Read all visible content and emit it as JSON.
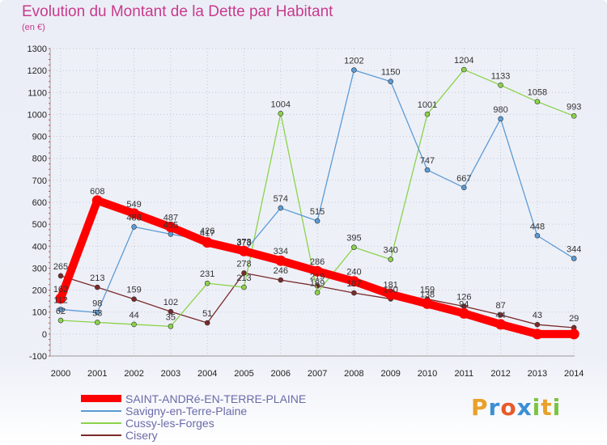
{
  "header": {
    "title": "Evolution du Montant de la Dette par Habitant",
    "subtitle": "(en €)"
  },
  "logo": {
    "letters": [
      {
        "ch": "P",
        "color": "#e8a12a"
      },
      {
        "ch": "r",
        "color": "#3a8fd6"
      },
      {
        "ch": "o",
        "color": "#e85a2a"
      },
      {
        "ch": "x",
        "color": "#3a8fd6"
      },
      {
        "ch": "i",
        "color": "#7cc440"
      },
      {
        "ch": "t",
        "color": "#e8a12a"
      },
      {
        "ch": "i",
        "color": "#7cc440"
      }
    ]
  },
  "chart_data": {
    "type": "line",
    "title": "Evolution du Montant de la Dette par Habitant",
    "ylabel": "(en €)",
    "xlabel": "",
    "x": [
      "2000",
      "2001",
      "2002",
      "2003",
      "2004",
      "2005",
      "2006",
      "2007",
      "2008",
      "2009",
      "2010",
      "2011",
      "2012",
      "2013",
      "2014"
    ],
    "ylim": [
      -100,
      1300
    ],
    "yticks": [
      -100,
      0,
      100,
      200,
      300,
      400,
      500,
      600,
      700,
      800,
      900,
      1000,
      1100,
      1200,
      1300
    ],
    "grid": true,
    "legend_position": "bottom-left",
    "series": [
      {
        "name": "SAINT-ANDRé-EN-TERRE-PLAINE",
        "color": "#ff0000",
        "values": [
          162,
          608,
          549,
          487,
          417,
          378,
          334,
          286,
          240,
          181,
          138,
          94,
          44,
          0,
          0
        ],
        "labels": [
          "162",
          "608",
          "549",
          "487",
          "417",
          "378",
          "334",
          "286",
          "240",
          "181",
          "138",
          "94",
          "44",
          "",
          ""
        ]
      },
      {
        "name": "Savigny-en-Terre-Plaine",
        "color": "#5b9bd5",
        "values": [
          112,
          98,
          488,
          455,
          426,
          373,
          574,
          515,
          1202,
          1150,
          747,
          667,
          980,
          448,
          344
        ],
        "labels": [
          "112",
          "98",
          "488",
          "455",
          "426",
          "373",
          "574",
          "515",
          "1202",
          "1150",
          "747",
          "667",
          "980",
          "448",
          "344"
        ]
      },
      {
        "name": "Cussy-les-Forges",
        "color": "#8bd34a",
        "values": [
          62,
          53,
          44,
          35,
          231,
          213,
          1004,
          189,
          395,
          340,
          1001,
          1204,
          1133,
          1058,
          993
        ],
        "labels": [
          "62",
          "53",
          "44",
          "35",
          "231",
          "213",
          "1004",
          "189",
          "395",
          "340",
          "1001",
          "1204",
          "1133",
          "1058",
          "993"
        ]
      },
      {
        "name": "Cisery",
        "color": "#7a2a2a",
        "values": [
          265,
          213,
          159,
          102,
          51,
          278,
          246,
          219,
          187,
          160,
          159,
          126,
          87,
          43,
          29
        ],
        "labels": [
          "265",
          "213",
          "159",
          "102",
          "51",
          "278",
          "246",
          "219",
          "187",
          "160",
          "159",
          "126",
          "87",
          "43",
          "29"
        ]
      }
    ]
  }
}
